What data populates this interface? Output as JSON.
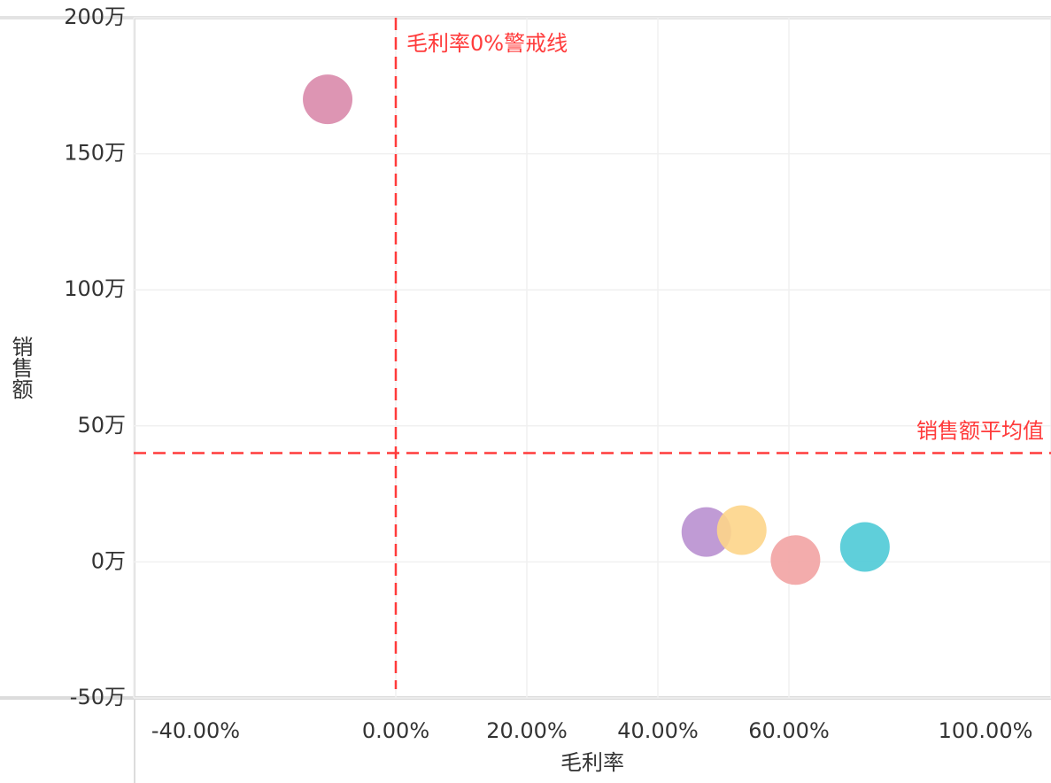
{
  "chart_data": {
    "type": "scatter",
    "xlabel": "毛利率",
    "ylabel": "销售额",
    "x": [
      -10.4,
      47.4,
      52.8,
      61,
      71.6
    ],
    "values": [
      170,
      11,
      11.7,
      0.7,
      5.5
    ],
    "colors": [
      "#d98aab",
      "#b990d0",
      "#fdd58a",
      "#f2a3a3",
      "#4ecad6"
    ],
    "xlim": [
      -40,
      100
    ],
    "xticks": [
      {
        "value": -40,
        "label": "-40.00%"
      },
      {
        "value": 0,
        "label": "0.00%"
      },
      {
        "value": 20,
        "label": "20.00%"
      },
      {
        "value": 40,
        "label": "40.00%"
      },
      {
        "value": 60,
        "label": "60.00%"
      },
      {
        "value": 100,
        "label": "100.00%"
      }
    ],
    "ylim": [
      -50,
      200
    ],
    "yticks": [
      {
        "value": -50,
        "label": "-50万"
      },
      {
        "value": 0,
        "label": "0万"
      },
      {
        "value": 50,
        "label": "50万"
      },
      {
        "value": 100,
        "label": "100万"
      },
      {
        "value": 150,
        "label": "150万"
      },
      {
        "value": 200,
        "label": "200万"
      }
    ],
    "grid": true,
    "reference_lines": [
      {
        "axis": "x",
        "value": 0,
        "label": "毛利率0%警戒线",
        "color": "#ff3b3b"
      },
      {
        "axis": "y",
        "value": 40,
        "label": "销售额平均值",
        "color": "#ff3b3b"
      }
    ]
  }
}
